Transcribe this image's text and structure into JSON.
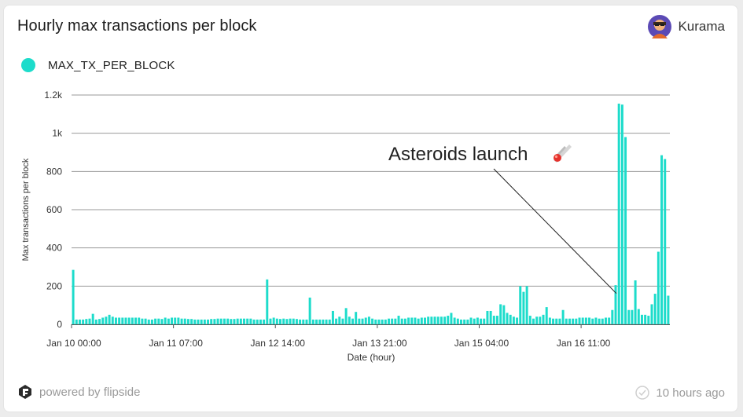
{
  "card": {
    "title": "Hourly max transactions per block",
    "user_name": "Kurama",
    "footer_brand": "powered by flipside",
    "footer_time": "10 hours ago"
  },
  "colors": {
    "series": "#1ddccb",
    "grid": "#9a9a9a",
    "axis_text": "#333333"
  },
  "chart_data": {
    "type": "bar",
    "title": "Hourly max transactions per block",
    "xlabel": "Date (hour)",
    "ylabel": "Max transactions per block",
    "ylim": [
      0,
      1200
    ],
    "yticks": [
      0,
      200,
      400,
      600,
      800,
      1000,
      1200
    ],
    "ytick_labels": [
      "0",
      "200",
      "400",
      "600",
      "800",
      "1k",
      "1.2k"
    ],
    "xticks": [
      {
        "hour": 0,
        "label": "Jan 10 00:00"
      },
      {
        "hour": 31,
        "label": "Jan 11 07:00"
      },
      {
        "hour": 62,
        "label": "Jan 12 14:00"
      },
      {
        "hour": 93,
        "label": "Jan 13 21:00"
      },
      {
        "hour": 124,
        "label": "Jan 15 04:00"
      },
      {
        "hour": 155,
        "label": "Jan 16 11:00"
      }
    ],
    "grid": true,
    "legend": "top-left",
    "series": [
      {
        "name": "MAX_TX_PER_BLOCK",
        "values": [
          285,
          25,
          25,
          25,
          28,
          30,
          55,
          25,
          28,
          35,
          40,
          50,
          40,
          35,
          35,
          35,
          35,
          35,
          35,
          35,
          35,
          30,
          30,
          25,
          25,
          30,
          30,
          28,
          35,
          30,
          35,
          35,
          35,
          30,
          30,
          28,
          28,
          25,
          25,
          25,
          25,
          25,
          28,
          28,
          30,
          30,
          30,
          30,
          28,
          28,
          30,
          30,
          30,
          30,
          30,
          25,
          25,
          25,
          25,
          235,
          30,
          35,
          30,
          28,
          30,
          28,
          30,
          30,
          28,
          25,
          25,
          25,
          140,
          25,
          25,
          25,
          25,
          25,
          25,
          70,
          30,
          40,
          30,
          85,
          40,
          30,
          65,
          30,
          30,
          35,
          40,
          30,
          25,
          25,
          25,
          25,
          30,
          30,
          30,
          45,
          30,
          30,
          35,
          35,
          35,
          30,
          35,
          35,
          40,
          40,
          40,
          40,
          40,
          40,
          45,
          60,
          35,
          30,
          25,
          25,
          25,
          35,
          30,
          35,
          30,
          30,
          70,
          70,
          45,
          45,
          105,
          100,
          60,
          50,
          40,
          35,
          200,
          170,
          200,
          45,
          30,
          40,
          40,
          50,
          90,
          35,
          30,
          30,
          30,
          75,
          30,
          30,
          30,
          30,
          35,
          35,
          35,
          35,
          30,
          35,
          30,
          30,
          35,
          35,
          75,
          205,
          1155,
          1150,
          980,
          75,
          75,
          230,
          80,
          50,
          50,
          45,
          105,
          160,
          380,
          885,
          865,
          150
        ]
      }
    ],
    "annotations": [
      {
        "text": "Asteroids launch",
        "emoji": "☄️",
        "points_to_hour": 165,
        "points_to_value": 100
      }
    ]
  }
}
